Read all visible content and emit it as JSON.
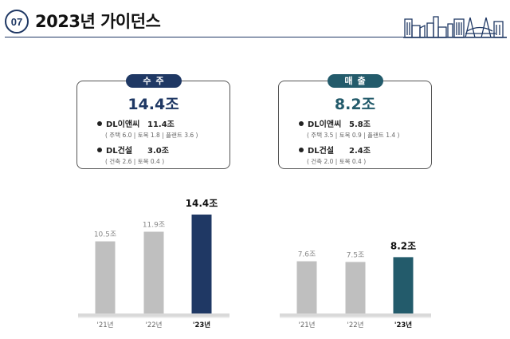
{
  "header": {
    "number": "07",
    "title": "2023년 가이던스"
  },
  "cards": [
    {
      "pill": "수주",
      "pill_color": "#1f3864",
      "total": "14.4조",
      "total_color": "#1f3864",
      "rows": [
        {
          "name": "DL이앤씨",
          "value": "11.4조",
          "detail": "( 주택 6.0 | 토목 1.8 | 플랜트 3.6 )"
        },
        {
          "name": "DL건설",
          "value": "3.0조",
          "detail": "( 건축 2.6 | 토목 0.4 )"
        }
      ]
    },
    {
      "pill": "매출",
      "pill_color": "#235b6b",
      "total": "8.2조",
      "total_color": "#235b6b",
      "rows": [
        {
          "name": "DL이앤씨",
          "value": "5.8조",
          "detail": "( 주택 3.5 | 토목 0.9 | 플랜트 1.4 )"
        },
        {
          "name": "DL건설",
          "value": "2.4조",
          "detail": "( 건축 2.0 | 토목 0.4 )"
        }
      ]
    }
  ],
  "chart_data": [
    {
      "type": "bar",
      "categories": [
        "'21년",
        "'22년",
        "'23년"
      ],
      "values": [
        10.5,
        11.9,
        14.4
      ],
      "value_labels": [
        "10.5조",
        "11.9조",
        "14.4조"
      ],
      "colors": [
        "#bfbfbf",
        "#bfbfbf",
        "#1f3864"
      ],
      "ylim": [
        0,
        14.4
      ],
      "grid": false
    },
    {
      "type": "bar",
      "categories": [
        "'21년",
        "'22년",
        "'23년"
      ],
      "values": [
        7.6,
        7.5,
        8.2
      ],
      "value_labels": [
        "7.6조",
        "7.5조",
        "8.2조"
      ],
      "colors": [
        "#bfbfbf",
        "#bfbfbf",
        "#235b6b"
      ],
      "ylim": [
        0,
        14.4
      ],
      "grid": false
    }
  ]
}
